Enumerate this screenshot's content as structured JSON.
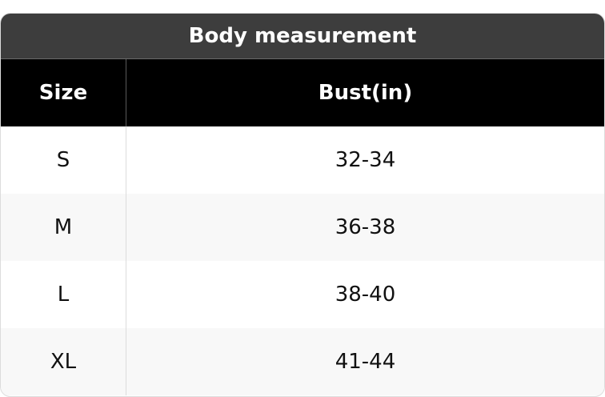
{
  "title": "Body measurement",
  "headers": [
    "Size",
    "Bust(in)"
  ],
  "rows": [
    [
      "S",
      "32-34"
    ],
    [
      "M",
      "36-38"
    ],
    [
      "L",
      "38-40"
    ],
    [
      "XL",
      "41-44"
    ]
  ]
}
